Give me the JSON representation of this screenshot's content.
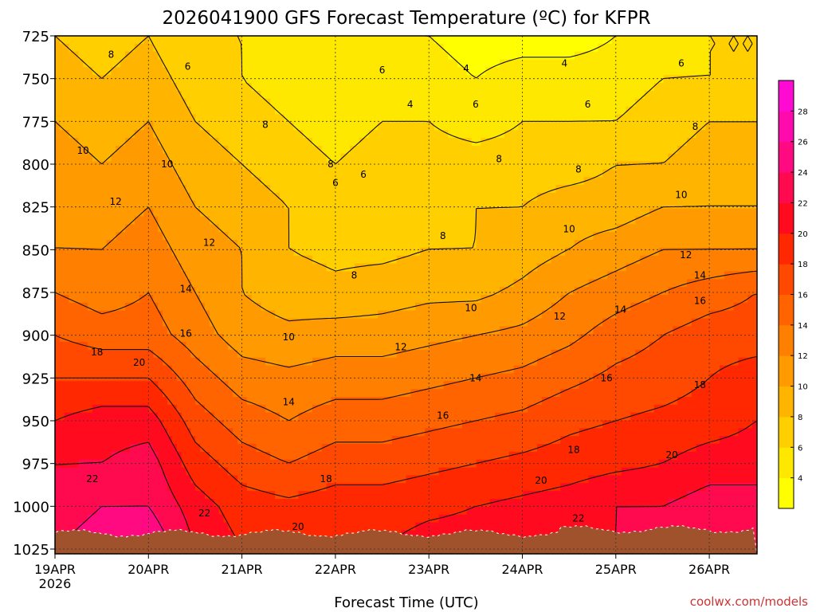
{
  "chart_data": {
    "type": "heatmap",
    "title": "2026041900 GFS Forecast Temperature (ºC) for KFPR",
    "xlabel": "Forecast Time (UTC)",
    "ylabel": "",
    "credit": "coolwx.com/models",
    "x_ticks": [
      {
        "label": "19APR",
        "sub": "2026",
        "day": 0
      },
      {
        "label": "20APR",
        "sub": "",
        "day": 1
      },
      {
        "label": "21APR",
        "sub": "",
        "day": 2
      },
      {
        "label": "22APR",
        "sub": "",
        "day": 3
      },
      {
        "label": "23APR",
        "sub": "",
        "day": 4
      },
      {
        "label": "24APR",
        "sub": "",
        "day": 5
      },
      {
        "label": "25APR",
        "sub": "",
        "day": 6
      },
      {
        "label": "26APR",
        "sub": "",
        "day": 7
      }
    ],
    "xlim": [
      0,
      7.5
    ],
    "y_ticks": [
      "725",
      "750",
      "775",
      "800",
      "825",
      "850",
      "875",
      "900",
      "925",
      "950",
      "975",
      "1000",
      "1025"
    ],
    "ylim": [
      725,
      1025
    ],
    "grid": true,
    "colorbar": {
      "ticks": [
        "4",
        "6",
        "8",
        "10",
        "12",
        "14",
        "16",
        "18",
        "20",
        "22",
        "24",
        "26",
        "28"
      ],
      "range": [
        2,
        30
      ],
      "colors": [
        "#ffff00",
        "#ffe800",
        "#ffcf00",
        "#ffb400",
        "#ff9a00",
        "#ff8000",
        "#ff6400",
        "#ff4800",
        "#ff2800",
        "#ff0a1e",
        "#ff0a4e",
        "#ff0a80",
        "#ff0aad",
        "#ff0ad2"
      ]
    },
    "ground_color": "#a0522d",
    "x_days": [
      0,
      0.5,
      1,
      1.5,
      2,
      2.5,
      3,
      3.5,
      4,
      4.5,
      5,
      5.5,
      6,
      6.5,
      7,
      7.5
    ],
    "levels": [
      725,
      750,
      775,
      800,
      825,
      850,
      875,
      900,
      925,
      950,
      975,
      1000,
      1025
    ],
    "temps": [
      [
        8,
        7,
        8,
        6,
        6,
        5,
        4,
        4,
        4,
        3,
        3,
        3,
        4,
        5,
        6,
        6
      ],
      [
        9,
        8,
        9,
        7,
        6,
        5,
        5,
        5,
        5,
        4,
        5,
        5,
        5,
        6,
        6,
        6
      ],
      [
        10,
        9,
        10,
        8,
        7,
        6,
        5,
        6,
        6,
        5,
        6,
        6,
        6,
        7,
        8,
        8
      ],
      [
        11,
        10,
        11,
        9,
        8,
        7,
        6,
        7,
        7,
        7,
        7,
        7,
        8,
        8,
        9,
        9
      ],
      [
        12,
        11,
        12,
        10,
        9,
        8,
        7,
        7,
        7,
        8,
        8,
        9,
        9,
        10,
        10,
        10
      ],
      [
        12,
        12,
        13,
        11,
        10,
        8,
        7.5,
        7.5,
        8,
        8,
        9,
        10,
        11,
        12,
        12,
        12
      ],
      [
        14,
        13,
        14,
        12,
        10,
        9,
        8.5,
        9,
        9.5,
        9.5,
        10.5,
        12,
        13,
        14,
        15,
        16
      ],
      [
        16,
        15,
        15,
        13,
        11,
        10.5,
        11,
        11,
        11.5,
        12,
        12.5,
        13.5,
        15,
        16,
        17,
        17
      ],
      [
        18,
        18,
        18,
        15,
        13,
        12.5,
        13,
        13,
        13.5,
        14,
        14.5,
        15.5,
        16.5,
        17,
        18,
        19
      ],
      [
        20,
        21,
        21,
        17,
        15,
        14,
        15,
        15,
        15.5,
        16,
        16.5,
        17.5,
        18,
        18.5,
        19,
        20
      ],
      [
        22,
        22,
        23,
        19,
        17,
        16,
        17,
        17,
        17.5,
        18,
        18.5,
        19,
        19.5,
        20,
        21,
        21
      ],
      [
        23,
        24,
        24,
        21,
        19,
        18.5,
        19,
        19,
        19.5,
        20,
        20.5,
        21,
        22,
        22,
        23,
        23
      ],
      [
        24,
        25,
        26,
        22,
        20,
        20,
        20,
        20,
        21,
        21,
        21.5,
        22,
        22,
        23,
        24,
        24
      ]
    ],
    "contour_labels": [
      {
        "text": "4",
        "day": 4.4,
        "p": 744
      },
      {
        "text": "4",
        "day": 5.45,
        "p": 741
      },
      {
        "text": "4",
        "day": 3.8,
        "p": 765
      },
      {
        "text": "6",
        "day": 1.42,
        "p": 743
      },
      {
        "text": "6",
        "day": 3.5,
        "p": 745
      },
      {
        "text": "6",
        "day": 6.7,
        "p": 741
      },
      {
        "text": "6",
        "day": 4.5,
        "p": 765
      },
      {
        "text": "6",
        "day": 5.7,
        "p": 765
      },
      {
        "text": "6",
        "day": 3.0,
        "p": 811
      },
      {
        "text": "6",
        "day": 3.3,
        "p": 806
      },
      {
        "text": "8",
        "day": 0.6,
        "p": 736
      },
      {
        "text": "8",
        "day": 2.25,
        "p": 777
      },
      {
        "text": "8",
        "day": 6.85,
        "p": 778
      },
      {
        "text": "8",
        "day": 2.95,
        "p": 800
      },
      {
        "text": "8",
        "day": 3.2,
        "p": 865
      },
      {
        "text": "8",
        "day": 4.15,
        "p": 842
      },
      {
        "text": "8",
        "day": 4.75,
        "p": 797
      },
      {
        "text": "8",
        "day": 5.6,
        "p": 803
      },
      {
        "text": "10",
        "day": 0.3,
        "p": 792
      },
      {
        "text": "10",
        "day": 1.2,
        "p": 800
      },
      {
        "text": "10",
        "day": 2.5,
        "p": 901
      },
      {
        "text": "10",
        "day": 4.45,
        "p": 884
      },
      {
        "text": "10",
        "day": 5.5,
        "p": 838
      },
      {
        "text": "10",
        "day": 6.7,
        "p": 818
      },
      {
        "text": "12",
        "day": 0.65,
        "p": 822
      },
      {
        "text": "12",
        "day": 1.65,
        "p": 846
      },
      {
        "text": "12",
        "day": 3.7,
        "p": 907
      },
      {
        "text": "12",
        "day": 5.4,
        "p": 889
      },
      {
        "text": "12",
        "day": 6.75,
        "p": 853
      },
      {
        "text": "14",
        "day": 1.4,
        "p": 873
      },
      {
        "text": "14",
        "day": 2.5,
        "p": 939
      },
      {
        "text": "14",
        "day": 4.5,
        "p": 925
      },
      {
        "text": "14",
        "day": 6.05,
        "p": 885
      },
      {
        "text": "14",
        "day": 6.9,
        "p": 865
      },
      {
        "text": "16",
        "day": 1.4,
        "p": 899
      },
      {
        "text": "16",
        "day": 4.15,
        "p": 947
      },
      {
        "text": "16",
        "day": 5.9,
        "p": 925
      },
      {
        "text": "16",
        "day": 6.9,
        "p": 880
      },
      {
        "text": "18",
        "day": 0.45,
        "p": 910
      },
      {
        "text": "18",
        "day": 2.9,
        "p": 984
      },
      {
        "text": "18",
        "day": 5.55,
        "p": 967
      },
      {
        "text": "18",
        "day": 6.9,
        "p": 929
      },
      {
        "text": "20",
        "day": 0.9,
        "p": 916
      },
      {
        "text": "20",
        "day": 2.6,
        "p": 1012
      },
      {
        "text": "20",
        "day": 5.2,
        "p": 985
      },
      {
        "text": "20",
        "day": 6.6,
        "p": 970
      },
      {
        "text": "22",
        "day": 0.4,
        "p": 984
      },
      {
        "text": "22",
        "day": 1.6,
        "p": 1004
      },
      {
        "text": "22",
        "day": 5.6,
        "p": 1007
      }
    ]
  }
}
